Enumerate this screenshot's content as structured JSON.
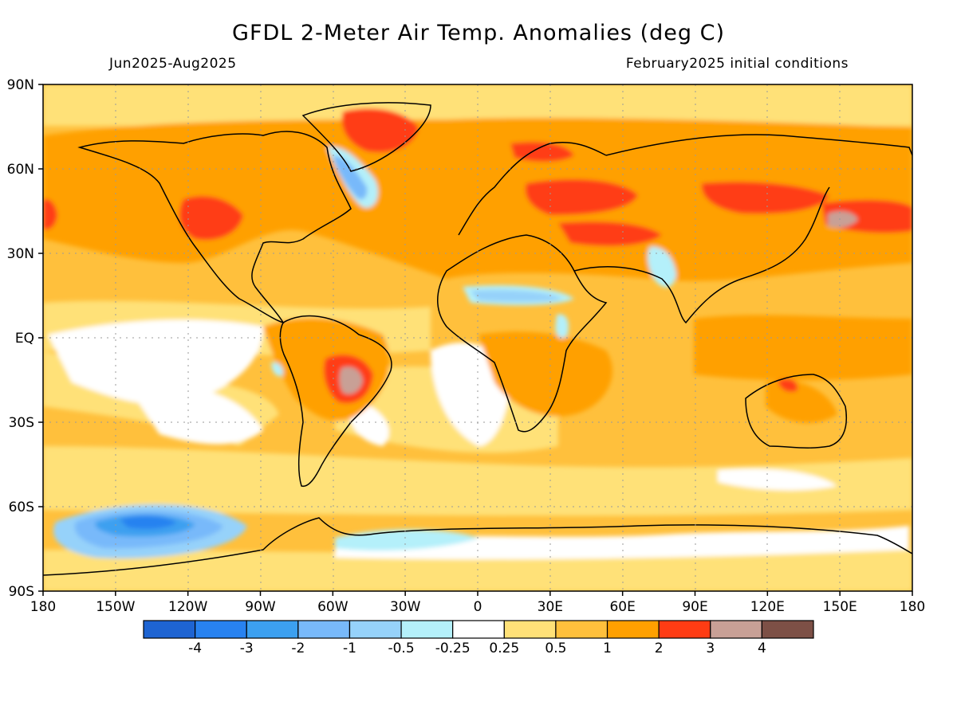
{
  "title": "GFDL 2-Meter Air Temp. Anomalies (deg C)",
  "period": "Jun2025-Aug2025",
  "init": "February2025 initial conditions",
  "lon_ticks": [
    {
      "lon": -180,
      "label": "180"
    },
    {
      "lon": -150,
      "label": "150W"
    },
    {
      "lon": -120,
      "label": "120W"
    },
    {
      "lon": -90,
      "label": "90W"
    },
    {
      "lon": -60,
      "label": "60W"
    },
    {
      "lon": -30,
      "label": "30W"
    },
    {
      "lon": 0,
      "label": "0"
    },
    {
      "lon": 30,
      "label": "30E"
    },
    {
      "lon": 60,
      "label": "60E"
    },
    {
      "lon": 90,
      "label": "90E"
    },
    {
      "lon": 120,
      "label": "120E"
    },
    {
      "lon": 150,
      "label": "150E"
    },
    {
      "lon": 180,
      "label": "180"
    }
  ],
  "lat_ticks": [
    {
      "lat": 90,
      "label": "90N"
    },
    {
      "lat": 60,
      "label": "60N"
    },
    {
      "lat": 30,
      "label": "30N"
    },
    {
      "lat": 0,
      "label": "EQ"
    },
    {
      "lat": -30,
      "label": "30S"
    },
    {
      "lat": -60,
      "label": "60S"
    },
    {
      "lat": -90,
      "label": "90S"
    }
  ],
  "colorbar": {
    "colors": [
      "#1e64d2",
      "#2882f0",
      "#3ca0f0",
      "#78b9fa",
      "#96d2fa",
      "#b4f0fa",
      "#ffffff",
      "#ffe178",
      "#ffc03c",
      "#ffa000",
      "#ff3c14",
      "#c8a096",
      "#7d5046"
    ],
    "labels": [
      "-4",
      "-3",
      "-2",
      "-1",
      "-0.5",
      "-0.25",
      "0.25",
      "0.5",
      "1",
      "2",
      "3",
      "4"
    ]
  },
  "anomaly_regions": [
    {
      "name": "Background warm (+0.5 to 1)",
      "level": 1,
      "color": "#ffc03c"
    },
    {
      "name": "Northern Hemisphere continents",
      "level": 2,
      "color": "#ffa000"
    },
    {
      "name": "Greenland",
      "level": 3,
      "color": "#ff3c14"
    },
    {
      "name": "Western North America",
      "level": 3,
      "color": "#ff3c14"
    },
    {
      "name": "Central Asia",
      "level": 3,
      "color": "#ff3c14"
    },
    {
      "name": "East Asia / Japan",
      "level": 4,
      "color": "#c8a096"
    },
    {
      "name": "Central South America",
      "level": 4,
      "color": "#c8a096"
    },
    {
      "name": "Southern Ocean (Amundsen Sea)",
      "level": -3,
      "color": "#2882f0"
    },
    {
      "name": "Labrador Sea",
      "level": -1,
      "color": "#78b9fa"
    },
    {
      "name": "Sahel",
      "level": -0.5,
      "color": "#96d2fa"
    },
    {
      "name": "Eastern tropical Pacific",
      "level": 0,
      "color": "#ffffff"
    }
  ]
}
